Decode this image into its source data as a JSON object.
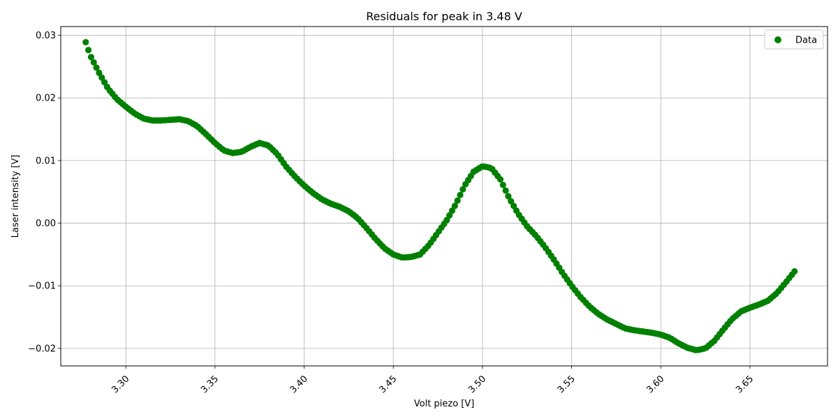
{
  "chart_data": {
    "type": "scatter",
    "title": "Residuals for peak in 3.48 V",
    "xlabel": "Volt piezo [V]",
    "ylabel": "Laser intensity [V]",
    "xlim": [
      3.2635,
      3.6935
    ],
    "ylim": [
      -0.0228,
      0.0314
    ],
    "xticks": [
      3.3,
      3.35,
      3.4,
      3.45,
      3.5,
      3.55,
      3.6,
      3.65
    ],
    "xtick_labels": [
      "3.30",
      "3.35",
      "3.40",
      "3.45",
      "3.50",
      "3.55",
      "3.60",
      "3.65"
    ],
    "yticks": [
      -0.02,
      -0.01,
      0.0,
      0.01,
      0.02,
      0.03
    ],
    "ytick_labels": [
      "−0.02",
      "−0.01",
      "0.00",
      "0.01",
      "0.02",
      "0.03"
    ],
    "grid": true,
    "legend_position": "upper-right",
    "series": [
      {
        "name": "Data",
        "color": "#008000",
        "marker": "circle",
        "keypoints": [
          [
            3.2775,
            0.0289
          ],
          [
            3.28,
            0.0268
          ],
          [
            3.285,
            0.024
          ],
          [
            3.29,
            0.0215
          ],
          [
            3.295,
            0.0198
          ],
          [
            3.3,
            0.0186
          ],
          [
            3.305,
            0.0175
          ],
          [
            3.31,
            0.0167
          ],
          [
            3.315,
            0.0164
          ],
          [
            3.32,
            0.0164
          ],
          [
            3.325,
            0.0165
          ],
          [
            3.33,
            0.0166
          ],
          [
            3.335,
            0.0163
          ],
          [
            3.34,
            0.0155
          ],
          [
            3.345,
            0.0142
          ],
          [
            3.35,
            0.0128
          ],
          [
            3.355,
            0.0116
          ],
          [
            3.36,
            0.0112
          ],
          [
            3.365,
            0.0114
          ],
          [
            3.37,
            0.0122
          ],
          [
            3.375,
            0.0128
          ],
          [
            3.38,
            0.0124
          ],
          [
            3.385,
            0.011
          ],
          [
            3.39,
            0.009
          ],
          [
            3.395,
            0.0074
          ],
          [
            3.4,
            0.006
          ],
          [
            3.405,
            0.0048
          ],
          [
            3.41,
            0.0038
          ],
          [
            3.415,
            0.0031
          ],
          [
            3.42,
            0.0026
          ],
          [
            3.425,
            0.0019
          ],
          [
            3.43,
            0.0008
          ],
          [
            3.435,
            -0.0008
          ],
          [
            3.44,
            -0.0025
          ],
          [
            3.445,
            -0.004
          ],
          [
            3.45,
            -0.005
          ],
          [
            3.455,
            -0.0055
          ],
          [
            3.46,
            -0.0054
          ],
          [
            3.465,
            -0.005
          ],
          [
            3.47,
            -0.0035
          ],
          [
            3.475,
            -0.0015
          ],
          [
            3.48,
            0.0005
          ],
          [
            3.485,
            0.003
          ],
          [
            3.49,
            0.006
          ],
          [
            3.495,
            0.0082
          ],
          [
            3.5,
            0.0091
          ],
          [
            3.505,
            0.0088
          ],
          [
            3.51,
            0.007
          ],
          [
            3.515,
            0.004
          ],
          [
            3.52,
            0.0015
          ],
          [
            3.525,
            -0.0005
          ],
          [
            3.53,
            -0.002
          ],
          [
            3.535,
            -0.0038
          ],
          [
            3.54,
            -0.0058
          ],
          [
            3.545,
            -0.008
          ],
          [
            3.55,
            -0.01
          ],
          [
            3.555,
            -0.0118
          ],
          [
            3.56,
            -0.0133
          ],
          [
            3.565,
            -0.0145
          ],
          [
            3.57,
            -0.0154
          ],
          [
            3.575,
            -0.0161
          ],
          [
            3.58,
            -0.0168
          ],
          [
            3.585,
            -0.0171
          ],
          [
            3.59,
            -0.0173
          ],
          [
            3.595,
            -0.0175
          ],
          [
            3.6,
            -0.0178
          ],
          [
            3.605,
            -0.0183
          ],
          [
            3.61,
            -0.0192
          ],
          [
            3.615,
            -0.0199
          ],
          [
            3.62,
            -0.0203
          ],
          [
            3.625,
            -0.02
          ],
          [
            3.63,
            -0.0188
          ],
          [
            3.635,
            -0.017
          ],
          [
            3.64,
            -0.0153
          ],
          [
            3.645,
            -0.0141
          ],
          [
            3.65,
            -0.0135
          ],
          [
            3.655,
            -0.013
          ],
          [
            3.66,
            -0.0124
          ],
          [
            3.665,
            -0.0112
          ],
          [
            3.67,
            -0.0095
          ],
          [
            3.675,
            -0.0077
          ]
        ]
      }
    ]
  }
}
